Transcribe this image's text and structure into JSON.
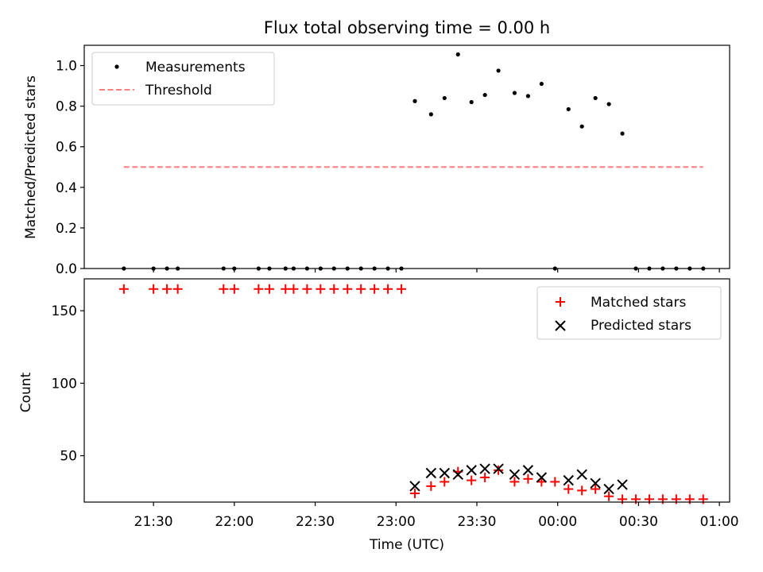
{
  "chart_data": [
    {
      "type": "scatter",
      "title": "Flux total observing time = 0.00 h",
      "ylabel": "Matched/Predicted stars",
      "xlabel": "",
      "ylim": [
        0.0,
        1.1
      ],
      "yticks": [
        0.0,
        0.2,
        0.4,
        0.6,
        0.8,
        1.0
      ],
      "ytick_labels": [
        "0.0",
        "0.2",
        "0.4",
        "0.6",
        "0.8",
        "1.0"
      ],
      "legend_position": "top-left",
      "grid": false,
      "series": [
        {
          "name": "Measurements",
          "kind": "scatter",
          "marker": "dot",
          "color": "#000000",
          "x": [
            "21:19",
            "21:30",
            "21:35",
            "21:39",
            "21:56",
            "22:00",
            "22:09",
            "22:13",
            "22:19",
            "22:22",
            "22:27",
            "22:32",
            "22:37",
            "22:42",
            "22:47",
            "22:52",
            "22:57",
            "23:02",
            "23:07",
            "23:13",
            "23:18",
            "23:23",
            "23:28",
            "23:33",
            "23:38",
            "23:44",
            "23:49",
            "23:54",
            "23:59",
            "00:04",
            "00:09",
            "00:14",
            "00:19",
            "00:24",
            "00:29",
            "00:34",
            "00:39",
            "00:44",
            "00:49",
            "00:54"
          ],
          "y": [
            0.0,
            0.0,
            0.0,
            0.0,
            0.0,
            0.0,
            0.0,
            0.0,
            0.0,
            0.0,
            0.0,
            0.0,
            0.0,
            0.0,
            0.0,
            0.0,
            0.0,
            0.0,
            0.825,
            0.76,
            0.84,
            1.055,
            0.82,
            0.855,
            0.975,
            0.865,
            0.85,
            0.91,
            0.0,
            0.785,
            0.7,
            0.84,
            0.81,
            0.665,
            0.0,
            0.0,
            0.0,
            0.0,
            0.0,
            0.0
          ]
        },
        {
          "name": "Threshold",
          "kind": "line",
          "dashed": true,
          "color": "#ff7f7f",
          "x": [
            "21:19",
            "00:54"
          ],
          "y": [
            0.5,
            0.5
          ]
        }
      ]
    },
    {
      "type": "scatter",
      "title": "",
      "ylabel": "Count",
      "xlabel": "Time (UTC)",
      "ylim": [
        18,
        172
      ],
      "yticks": [
        50,
        100,
        150
      ],
      "ytick_labels": [
        "50",
        "100",
        "150"
      ],
      "x_ticks": [
        "21:30",
        "22:00",
        "22:30",
        "23:00",
        "23:30",
        "00:00",
        "00:30",
        "01:00"
      ],
      "legend_position": "top-right",
      "grid": false,
      "series": [
        {
          "name": "Matched stars",
          "kind": "scatter",
          "marker": "plus",
          "color": "#ff0000",
          "x": [
            "21:19",
            "21:30",
            "21:35",
            "21:39",
            "21:56",
            "22:00",
            "22:09",
            "22:13",
            "22:19",
            "22:22",
            "22:27",
            "22:32",
            "22:37",
            "22:42",
            "22:47",
            "22:52",
            "22:57",
            "23:02",
            "23:07",
            "23:13",
            "23:18",
            "23:23",
            "23:28",
            "23:33",
            "23:38",
            "23:44",
            "23:49",
            "23:54",
            "23:59",
            "00:04",
            "00:09",
            "00:14",
            "00:19",
            "00:24",
            "00:29",
            "00:34",
            "00:39",
            "00:44",
            "00:49",
            "00:54"
          ],
          "y": [
            165,
            165,
            165,
            165,
            165,
            165,
            165,
            165,
            165,
            165,
            165,
            165,
            165,
            165,
            165,
            165,
            165,
            165,
            24,
            29,
            32,
            39,
            33,
            35,
            40,
            32,
            34,
            32,
            32,
            27,
            26,
            27,
            22,
            20,
            20,
            20,
            20,
            20,
            20,
            20
          ]
        },
        {
          "name": "Predicted stars",
          "kind": "scatter",
          "marker": "x",
          "color": "#000000",
          "x": [
            "23:07",
            "23:13",
            "23:18",
            "23:23",
            "23:28",
            "23:33",
            "23:38",
            "23:44",
            "23:49",
            "23:54",
            "00:04",
            "00:09",
            "00:14",
            "00:19",
            "00:24"
          ],
          "y": [
            29,
            38,
            38,
            37,
            40,
            41,
            41,
            37,
            40,
            35,
            33,
            37,
            31,
            27,
            30
          ]
        }
      ]
    }
  ]
}
